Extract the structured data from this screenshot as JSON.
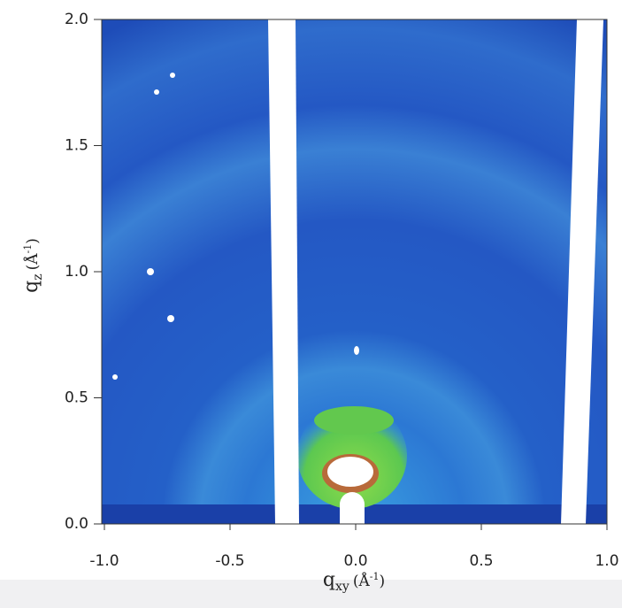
{
  "chart_data": {
    "type": "heatmap",
    "xlabel": {
      "base": "q",
      "sub": "xy",
      "unit_open": "(Å",
      "unit_sup": "-1",
      "unit_close": ")"
    },
    "ylabel": {
      "base": "q",
      "sub": "z",
      "unit_open": "(Å",
      "unit_sup": "-1",
      "unit_close": ")"
    },
    "xlim": [
      -1.0,
      1.0
    ],
    "ylim": [
      0.0,
      2.0
    ],
    "xticks": [
      {
        "value": -1.0,
        "label": "-1.0"
      },
      {
        "value": -0.5,
        "label": "-0.5"
      },
      {
        "value": 0.0,
        "label": "0.0"
      },
      {
        "value": 0.5,
        "label": "0.5"
      },
      {
        "value": 1.0,
        "label": "1.0"
      }
    ],
    "yticks": [
      {
        "value": 0.0,
        "label": "0.0"
      },
      {
        "value": 0.5,
        "label": "0.5"
      },
      {
        "value": 1.0,
        "label": "1.0"
      },
      {
        "value": 1.5,
        "label": "1.5"
      },
      {
        "value": 2.0,
        "label": "2.0"
      }
    ]
  }
}
